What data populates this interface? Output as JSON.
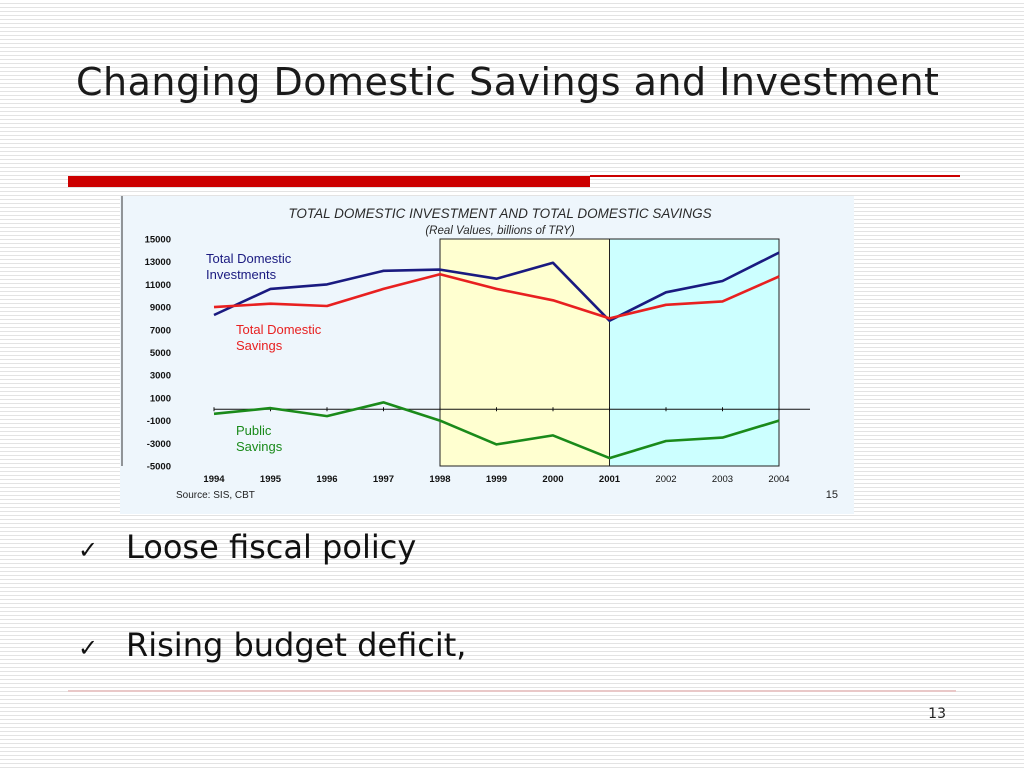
{
  "slide": {
    "title": "Changing Domestic Savings and Investment",
    "bullets": [
      "Loose fiscal policy",
      "Rising budget deficit,"
    ],
    "bullet_icon": "checkmark-icon",
    "page_number": "13",
    "colors": {
      "accent_red": "#cc0000"
    }
  },
  "chart_data": {
    "type": "line",
    "title": "TOTAL DOMESTIC INVESTMENT AND  TOTAL DOMESTIC SAVINGS",
    "subtitle": "(Real Values, billions of TRY)",
    "source": "Source: SIS, CBT",
    "page_ref": "15",
    "categories": [
      "1994",
      "1995",
      "1996",
      "1997",
      "1998",
      "1999",
      "2000",
      "2001",
      "2002",
      "2003",
      "2004"
    ],
    "ylim": [
      -5000,
      15000
    ],
    "yticks": [
      "15000",
      "13000",
      "11000",
      "9000",
      "7000",
      "5000",
      "3000",
      "1000",
      "-1000",
      "-3000",
      "-5000"
    ],
    "shaded_regions": [
      {
        "from": "1998",
        "to": "2001",
        "color": "#ffffd0"
      },
      {
        "from": "2001",
        "to": "2004",
        "color": "#ccffff"
      }
    ],
    "series": [
      {
        "name": "Total Domestic Investments",
        "color": "#1a1a80",
        "values": [
          8300,
          10600,
          11000,
          12200,
          12300,
          11500,
          12900,
          7800,
          10300,
          11300,
          13800
        ]
      },
      {
        "name": "Total Domestic Savings",
        "color": "#e82020",
        "values": [
          9000,
          9300,
          9100,
          10600,
          11900,
          10600,
          9600,
          8000,
          9200,
          9500,
          11700
        ]
      },
      {
        "name": "Public Savings",
        "color": "#1a8a1a",
        "values": [
          -400,
          100,
          -600,
          600,
          -1000,
          -3100,
          -2300,
          -4300,
          -2800,
          -2500,
          -1000
        ]
      }
    ],
    "legend_labels": [
      {
        "lines": [
          "Total Domestic",
          "Investments"
        ],
        "color": "#1a1a80"
      },
      {
        "lines": [
          "Total Domestic",
          "Savings"
        ],
        "color": "#e82020"
      },
      {
        "lines": [
          "Public",
          "Savings"
        ],
        "color": "#1a8a1a"
      }
    ]
  }
}
